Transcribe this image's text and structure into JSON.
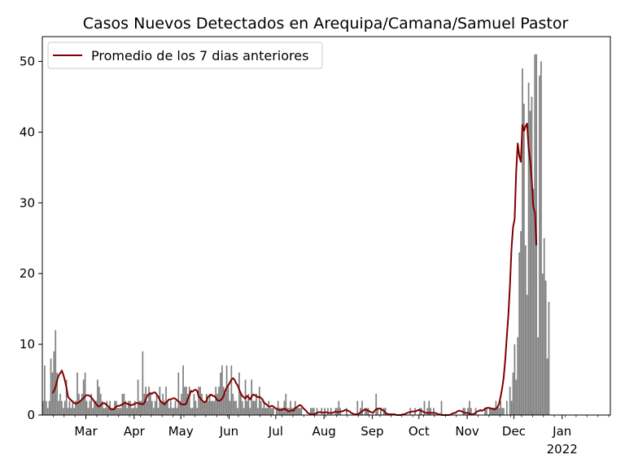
{
  "chart_data": {
    "type": "bar",
    "title": "Casos Nuevos Detectados en Arequipa/Camana/Samuel Pastor",
    "xlabel": "",
    "ylabel": "",
    "x_start": "2022-02-01",
    "x_end": "2023-02-01",
    "ylim": [
      0,
      53.5
    ],
    "yticks": [
      0,
      10,
      20,
      30,
      40,
      50
    ],
    "xticks": [
      {
        "date": "2022-03-01",
        "label": "Mar"
      },
      {
        "date": "2022-04-01",
        "label": "Apr"
      },
      {
        "date": "2022-05-01",
        "label": "May"
      },
      {
        "date": "2022-06-01",
        "label": "Jun"
      },
      {
        "date": "2022-07-01",
        "label": "Jul"
      },
      {
        "date": "2022-08-01",
        "label": "Aug"
      },
      {
        "date": "2022-09-01",
        "label": "Sep"
      },
      {
        "date": "2022-10-01",
        "label": "Oct"
      },
      {
        "date": "2022-11-01",
        "label": "Nov"
      },
      {
        "date": "2022-12-01",
        "label": "Dec"
      },
      {
        "date": "2023-01-01",
        "label": "Jan",
        "sublabel": "2022"
      }
    ],
    "grid": false,
    "legend_position": "top-left",
    "bar_color": "#808080",
    "line_color": "#800000",
    "series": [
      {
        "kind": "bar",
        "values": [
          2,
          7,
          2,
          1,
          2,
          8,
          6,
          9,
          12,
          6,
          2,
          3,
          2,
          1,
          2,
          5,
          1,
          2,
          1,
          2,
          1,
          2,
          6,
          3,
          2,
          3,
          5,
          6,
          2,
          1,
          2,
          3,
          1,
          2,
          2,
          5,
          4,
          3,
          2,
          1,
          1,
          2,
          1,
          2,
          1,
          1,
          2,
          2,
          1,
          1,
          1,
          3,
          3,
          2,
          1,
          2,
          2,
          1,
          1,
          2,
          1,
          5,
          2,
          2,
          9,
          3,
          4,
          2,
          4,
          3,
          2,
          1,
          2,
          3,
          1,
          4,
          2,
          3,
          2,
          4,
          2,
          1,
          2,
          1,
          1,
          2,
          1,
          6,
          2,
          3,
          7,
          4,
          4,
          3,
          4,
          1,
          1,
          3,
          2,
          1,
          4,
          4,
          3,
          2,
          2,
          3,
          2,
          3,
          2,
          2,
          2,
          4,
          3,
          4,
          6,
          7,
          4,
          3,
          7,
          4,
          2,
          7,
          3,
          2,
          2,
          1,
          6,
          3,
          2,
          1,
          5,
          2,
          3,
          1,
          5,
          2,
          2,
          3,
          1,
          4,
          2,
          1,
          2,
          1,
          1,
          2,
          1,
          1,
          1,
          0,
          1,
          2,
          1,
          1,
          1,
          2,
          3,
          1,
          1,
          2,
          1,
          1,
          2,
          1,
          1,
          1,
          1,
          0,
          0,
          0,
          0,
          0,
          1,
          1,
          1,
          0,
          1,
          0,
          0,
          1,
          0,
          1,
          0,
          1,
          0,
          1,
          0,
          0,
          1,
          1,
          2,
          1,
          0,
          0,
          0,
          1,
          0,
          0,
          0,
          0,
          0,
          0,
          2,
          0,
          1,
          2,
          0,
          1,
          1,
          1,
          0,
          0,
          0,
          0,
          3,
          1,
          0,
          1,
          0,
          1,
          1,
          0,
          0,
          0,
          0,
          0,
          0,
          0,
          0,
          0,
          0,
          0,
          0,
          0,
          0,
          0,
          1,
          0,
          0,
          1,
          0,
          0,
          1,
          1,
          0,
          2,
          0,
          1,
          2,
          1,
          0,
          1,
          0,
          0,
          0,
          0,
          2,
          0,
          0,
          0,
          0,
          0,
          0,
          0,
          0,
          0,
          0,
          0,
          0,
          0,
          1,
          1,
          0,
          1,
          2,
          1,
          0,
          0,
          1,
          0,
          0,
          0,
          0,
          0,
          1,
          1,
          0,
          1,
          1,
          1,
          1,
          2,
          1,
          1,
          2,
          1,
          1,
          0,
          2,
          0,
          4,
          2,
          6,
          10,
          5,
          11,
          23,
          26,
          49,
          44,
          24,
          17,
          47,
          43,
          45,
          32,
          51,
          51,
          11,
          48,
          50,
          20,
          25,
          19,
          8,
          16
        ]
      },
      {
        "kind": "line",
        "name": "Promedio de los 7 dias anteriores",
        "start_date": "2022-02-07",
        "values": [
          3.1,
          3.4,
          4.0,
          4.9,
          5.6,
          5.9,
          6.3,
          5.7,
          4.9,
          3.9,
          2.6,
          2.3,
          2.1,
          1.9,
          1.7,
          1.6,
          1.7,
          1.8,
          2.0,
          2.2,
          2.4,
          2.7,
          2.8,
          2.8,
          2.7,
          2.5,
          2.2,
          1.9,
          1.6,
          1.3,
          1.2,
          1.4,
          1.6,
          1.7,
          1.6,
          1.4,
          1.2,
          0.9,
          0.8,
          0.8,
          0.9,
          1.2,
          1.3,
          1.3,
          1.4,
          1.5,
          1.7,
          1.7,
          1.6,
          1.5,
          1.4,
          1.4,
          1.5,
          1.6,
          1.7,
          1.7,
          1.6,
          1.6,
          1.5,
          1.7,
          2.2,
          2.8,
          2.9,
          3.1,
          3.0,
          3.2,
          3.2,
          2.9,
          2.6,
          2.1,
          1.8,
          1.7,
          1.5,
          1.7,
          2.0,
          2.2,
          2.2,
          2.3,
          2.4,
          2.3,
          2.1,
          1.9,
          1.7,
          1.5,
          1.5,
          1.5,
          1.6,
          2.3,
          2.7,
          3.4,
          3.3,
          3.5,
          3.6,
          3.4,
          2.6,
          2.4,
          2.1,
          1.9,
          1.8,
          2.0,
          2.6,
          2.7,
          2.9,
          2.7,
          2.7,
          2.4,
          2.1,
          2.0,
          2.1,
          2.3,
          2.7,
          3.4,
          3.9,
          4.2,
          4.6,
          5.0,
          5.2,
          5.0,
          4.5,
          4.2,
          3.6,
          3.1,
          2.7,
          2.5,
          2.3,
          2.7,
          2.5,
          2.2,
          2.6,
          2.9,
          2.8,
          2.7,
          2.5,
          2.6,
          2.4,
          2.2,
          1.7,
          1.6,
          1.4,
          1.2,
          1.2,
          1.3,
          1.2,
          1.0,
          0.9,
          0.8,
          0.7,
          0.7,
          0.8,
          0.9,
          0.8,
          0.6,
          0.5,
          0.6,
          0.7,
          0.6,
          1.0,
          1.1,
          1.3,
          1.4,
          1.3,
          1.0,
          0.8,
          0.6,
          0.3,
          0.2,
          0.1,
          0.1,
          0.1,
          0.2,
          0.3,
          0.4,
          0.4,
          0.4,
          0.3,
          0.4,
          0.4,
          0.3,
          0.3,
          0.3,
          0.3,
          0.4,
          0.5,
          0.4,
          0.4,
          0.5,
          0.5,
          0.6,
          0.7,
          0.7,
          0.6,
          0.5,
          0.3,
          0.2,
          0.1,
          0.1,
          0.1,
          0.2,
          0.4,
          0.5,
          0.7,
          0.8,
          0.7,
          0.6,
          0.5,
          0.4,
          0.3,
          0.6,
          0.8,
          0.9,
          0.9,
          0.9,
          0.7,
          0.6,
          0.3,
          0.2,
          0.1,
          0.1,
          0.1,
          0.1,
          0.1,
          0.0,
          0.0,
          0.0,
          0.0,
          0.1,
          0.1,
          0.2,
          0.3,
          0.4,
          0.4,
          0.5,
          0.5,
          0.5,
          0.6,
          0.7,
          0.7,
          0.6,
          0.5,
          0.4,
          0.3,
          0.3,
          0.3,
          0.3,
          0.3,
          0.3,
          0.3,
          0.2,
          0.1,
          0.1,
          0.0,
          0.0,
          0.0,
          0.0,
          0.0,
          0.0,
          0.1,
          0.2,
          0.3,
          0.3,
          0.5,
          0.6,
          0.6,
          0.5,
          0.4,
          0.3,
          0.3,
          0.3,
          0.2,
          0.1,
          0.1,
          0.2,
          0.3,
          0.5,
          0.6,
          0.7,
          0.6,
          0.7,
          0.9,
          1.0,
          1.0,
          1.0,
          0.9,
          0.9,
          0.8,
          0.9,
          1.1,
          1.6,
          2.6,
          3.8,
          5.4,
          7.9,
          11.2,
          14.2,
          18.4,
          23.6,
          26.6,
          27.7,
          34.4,
          38.4,
          36.6,
          35.8,
          41.0,
          40.2,
          40.8,
          41.2,
          37.7,
          36.0,
          33.2,
          29.4,
          28.7,
          24.0
        ]
      }
    ]
  }
}
